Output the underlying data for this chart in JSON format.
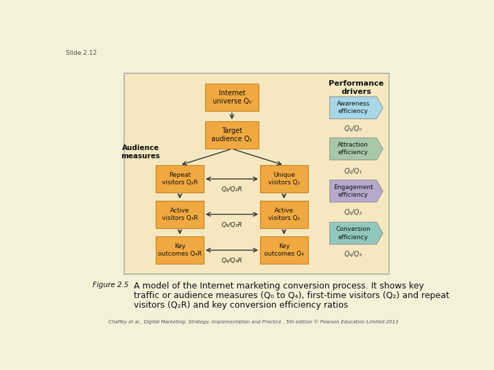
{
  "bg_color": "#f5f0d8",
  "slide_label": "Slide 2.12",
  "diagram_bg": "#f5e8c0",
  "diagram_border": "#b0b0a0",
  "orange_box_color": "#f0a840",
  "orange_box_edge": "#c88020",
  "awareness_color": "#a8d8e8",
  "attraction_color": "#a8c8a8",
  "engagement_color": "#b8a8cc",
  "conversion_color": "#90c8c0",
  "arrow_color": "#303030",
  "text_color": "#202020",
  "credit": "Chaffey et al., Digital Marketing: Strategy, Implementation and Practice , 5th edition © Pearson Education Limited 2013",
  "perf_boxes": [
    {
      "label": "Awareness\nefficiency",
      "color": "#a8d8e8"
    },
    {
      "label": "Attraction\nefficiency",
      "color": "#a8c8a8"
    },
    {
      "label": "Engagement\nefficiency",
      "color": "#b8a8cc"
    },
    {
      "label": "Conversion\nefficiency",
      "color": "#90c8c0"
    }
  ],
  "perf_ratio_labels": [
    "Q₁/Q₀",
    "Q₂/Q₁",
    "Q₃/Q₂",
    "Q₄/Q₃"
  ],
  "ratio_labels": [
    "Q₂/Q₂R",
    "Q₃/Q₃R",
    "Q₄/Q₄R"
  ]
}
